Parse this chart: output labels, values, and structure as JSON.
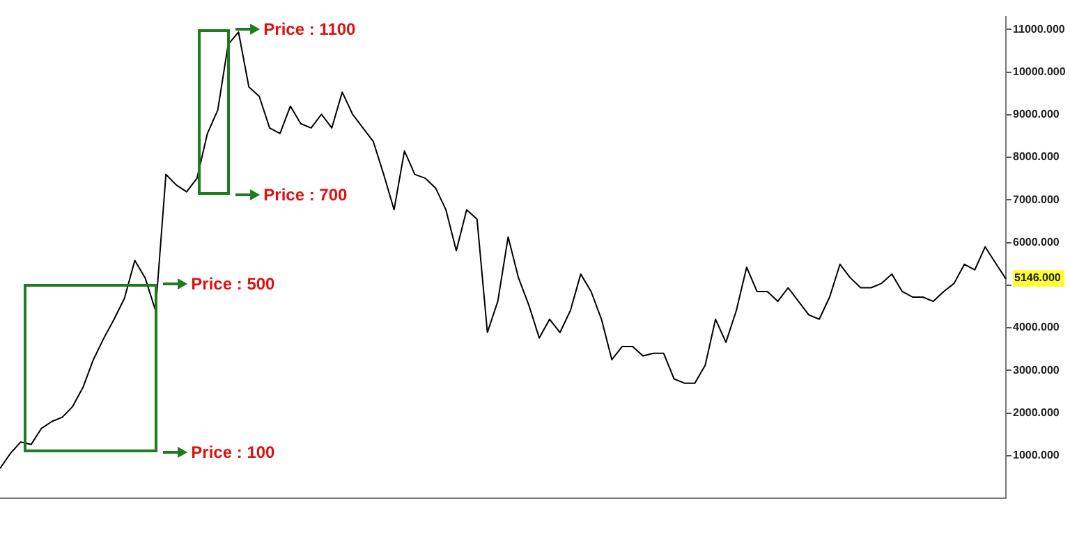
{
  "chart_data": {
    "type": "line",
    "categories": [
      null,
      null,
      null,
      null,
      null,
      null,
      null,
      null,
      null,
      null,
      null,
      null,
      null,
      null,
      null,
      null,
      null,
      null,
      null,
      null,
      null,
      null,
      null,
      null,
      null,
      null,
      null,
      null,
      null,
      null,
      null,
      null,
      null,
      null,
      null,
      null,
      null,
      null,
      null,
      null,
      null,
      null,
      null,
      null,
      null,
      null,
      null,
      null,
      null,
      null,
      null,
      null,
      null,
      null,
      null,
      null,
      null,
      null,
      null,
      null,
      null,
      null,
      null,
      null,
      null,
      null,
      null,
      null,
      null,
      null,
      null,
      null,
      null,
      null,
      null,
      null,
      null,
      null,
      null,
      null,
      null,
      null,
      null,
      null,
      null,
      null,
      null,
      null,
      null,
      null,
      null,
      null,
      null,
      null,
      null,
      null,
      null,
      null
    ],
    "series": [
      {
        "color": "#000000",
        "values": [
          700,
          1050,
          1320,
          1260,
          1640,
          1800,
          1900,
          2150,
          2600,
          3250,
          3750,
          4200,
          4690,
          5580,
          5170,
          4400,
          7600,
          7350,
          7190,
          7510,
          8560,
          9110,
          10650,
          10940,
          9650,
          9430,
          8690,
          8560,
          9200,
          8790,
          8690,
          9010,
          8690,
          9530,
          9010,
          8690,
          8370,
          7600,
          6770,
          8150,
          7600,
          7510,
          7280,
          6770,
          5810,
          6770,
          6550,
          3890,
          4620,
          6130,
          5170,
          4530,
          3760,
          4200,
          3890,
          4400,
          5260,
          4850,
          4200,
          3250,
          3560,
          3560,
          3340,
          3400,
          3400,
          2800,
          2700,
          2700,
          3120,
          4200,
          3660,
          4400,
          5420,
          4850,
          4850,
          4620,
          4940,
          4620,
          4300,
          4200,
          4720,
          5490,
          5170,
          4940,
          4940,
          5040,
          5260,
          4850,
          4720,
          4720,
          4620,
          4850,
          5040,
          5490,
          5360,
          5900,
          5520,
          5146
        ]
      }
    ],
    "ylim": [
      0,
      11300
    ],
    "yticks": [
      {
        "value": 1000,
        "label": "1000.000"
      },
      {
        "value": 2000,
        "label": "2000.000"
      },
      {
        "value": 3000,
        "label": "3000.000"
      },
      {
        "value": 4000,
        "label": "4000.000"
      },
      {
        "value": 5000,
        "label": null
      },
      {
        "value": 6000,
        "label": "6000.000"
      },
      {
        "value": 7000,
        "label": "7000.000"
      },
      {
        "value": 8000,
        "label": "8000.000"
      },
      {
        "value": 9000,
        "label": "9000.000"
      },
      {
        "value": 10000,
        "label": "10000.000"
      },
      {
        "value": 11000,
        "label": "11000.000"
      }
    ],
    "tick_labels": "y",
    "grid": false,
    "legend": false,
    "marker": "none",
    "line_style": "solid",
    "annotations": [
      "Price : 1100",
      "Price : 700",
      "Price : 500",
      "Price : 100",
      "5146.000"
    ]
  }
}
